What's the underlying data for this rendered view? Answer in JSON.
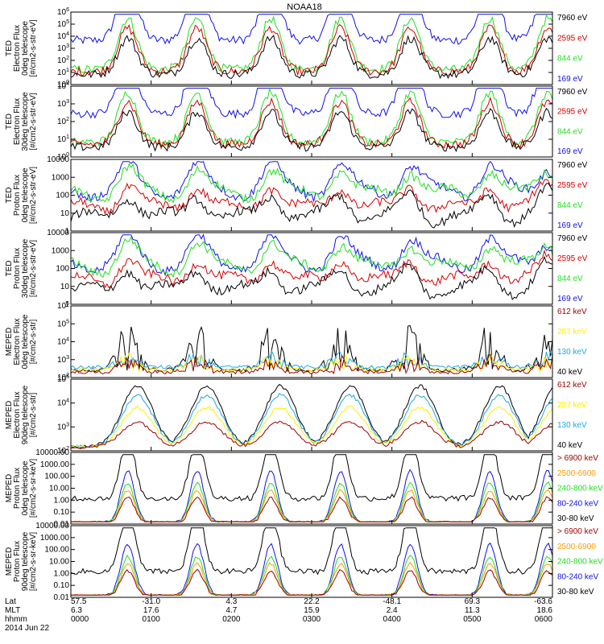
{
  "title": "NOAA18",
  "date": "2014 Jun 22",
  "colors": {
    "black": "#000000",
    "red": "#d40000",
    "green": "#1fe01f",
    "blue": "#1010e8",
    "darkred": "#990000",
    "yellow": "#ffee00",
    "cyan": "#1ca8e8",
    "orange": "#ff9900"
  },
  "chart_data": [
    {
      "type": "line",
      "ylabel": [
        "TED",
        "Electron Flux",
        "0deg telescope",
        "[#/cm2-s-str-eV]"
      ],
      "yticks": [
        "10^0",
        "10^1",
        "10^2",
        "10^3",
        "10^4",
        "10^5",
        "10^6"
      ],
      "legend": [
        {
          "text": "7960 eV",
          "color": "#000000"
        },
        {
          "text": "2595 eV",
          "color": "#d40000"
        },
        {
          "text": "844 eV",
          "color": "#1fe01f"
        },
        {
          "text": "169 eV",
          "color": "#1010e8"
        }
      ]
    },
    {
      "type": "line",
      "ylabel": [
        "TED",
        "Electron Flux",
        "30deg telescope",
        "[#/cm2-s-str-eV]"
      ],
      "yticks": [
        "10^0",
        "10^1",
        "10^2",
        "10^3",
        "10^4"
      ],
      "legend": [
        {
          "text": "7960 eV",
          "color": "#000000"
        },
        {
          "text": "2595 eV",
          "color": "#d40000"
        },
        {
          "text": "844 eV",
          "color": "#1fe01f"
        },
        {
          "text": "169 eV",
          "color": "#1010e8"
        }
      ]
    },
    {
      "type": "line",
      "ylabel": [
        "TED",
        "Proton Flux",
        "0deg telescope",
        "[#/cm2-s-str-eV]"
      ],
      "yticks": [
        "1",
        "10",
        "100",
        "1000",
        "10000"
      ],
      "legend": [
        {
          "text": "7960 eV",
          "color": "#000000"
        },
        {
          "text": "2595 eV",
          "color": "#d40000"
        },
        {
          "text": "844 eV",
          "color": "#1fe01f"
        },
        {
          "text": "169 eV",
          "color": "#1010e8"
        }
      ]
    },
    {
      "type": "line",
      "ylabel": [
        "TED",
        "Proton Flux",
        "30deg telescope",
        "[#/cm2-s-str-eV]"
      ],
      "yticks": [
        "1",
        "10",
        "100",
        "1000",
        "10000"
      ],
      "legend": [
        {
          "text": "7960 eV",
          "color": "#000000"
        },
        {
          "text": "2595 eV",
          "color": "#d40000"
        },
        {
          "text": "844 eV",
          "color": "#1fe01f"
        },
        {
          "text": "169 eV",
          "color": "#1010e8"
        }
      ]
    },
    {
      "type": "line",
      "ylabel": [
        "MEPED",
        "Electron Flux",
        "0deg telescope",
        "[#/cm2-s-str]"
      ],
      "yticks": [
        "10^2",
        "10^3",
        "10^4",
        "10^5",
        "10^6"
      ],
      "legend": [
        {
          "text": "612 keV",
          "color": "#990000"
        },
        {
          "text": "287 keV",
          "color": "#ffee00"
        },
        {
          "text": "130 keV",
          "color": "#1ca8e8"
        },
        {
          "text": "40 keV",
          "color": "#000000"
        }
      ]
    },
    {
      "type": "line",
      "ylabel": [
        "MEPED",
        "Electron Flux",
        "90deg telescope",
        "[#/cm2-s-str]"
      ],
      "yticks": [
        "10^2",
        "10^3",
        "10^4",
        "10^5"
      ],
      "legend": [
        {
          "text": "612 keV",
          "color": "#990000"
        },
        {
          "text": "287 keV",
          "color": "#ffee00"
        },
        {
          "text": "130 keV",
          "color": "#1ca8e8"
        },
        {
          "text": "40 keV",
          "color": "#000000"
        }
      ]
    },
    {
      "type": "line",
      "ylabel": [
        "MEPED",
        "Proton Flux",
        "0deg telescope",
        "[#/cm2-s-sr-keV]"
      ],
      "yticks": [
        "0.01",
        "0.10",
        "1.00",
        "10.00",
        "100.00",
        "1000.00",
        "10000.00"
      ],
      "legend": [
        {
          "text": "> 6900 keV",
          "color": "#990000"
        },
        {
          "text": "2500-6900",
          "color": "#ff9900"
        },
        {
          "text": "240-800 keV",
          "color": "#1fe01f"
        },
        {
          "text": "80-240 keV",
          "color": "#1010e8"
        },
        {
          "text": "30-80 keV",
          "color": "#000000"
        }
      ]
    },
    {
      "type": "line",
      "ylabel": [
        "MEPED",
        "Proton Flux",
        "90deg telescope",
        "[#/cm2-s-sr-keV]"
      ],
      "yticks": [
        "0.01",
        "0.10",
        "1.00",
        "10.00",
        "100.00",
        "1000.00",
        "10000.00"
      ],
      "legend": [
        {
          "text": "> 6900 keV",
          "color": "#990000"
        },
        {
          "text": "2500-6900",
          "color": "#ff9900"
        },
        {
          "text": "240-800 keV",
          "color": "#1fe01f"
        },
        {
          "text": "80-240 keV",
          "color": "#1010e8"
        },
        {
          "text": "30-80 keV",
          "color": "#000000"
        }
      ]
    }
  ],
  "xaxis": {
    "row_labels": [
      "Lat",
      "MLT",
      "hhmm"
    ],
    "lat": [
      "57.5",
      "-31.0",
      "4.3",
      "22.2",
      "-48.1",
      "69.3",
      "-63.6"
    ],
    "mlt": [
      "6.3",
      "17.6",
      "4.7",
      "15.9",
      "2.4",
      "11.3",
      "18.6"
    ],
    "hhmm": [
      "0000",
      "0100",
      "0200",
      "0300",
      "0400",
      "0500",
      "0600"
    ]
  }
}
